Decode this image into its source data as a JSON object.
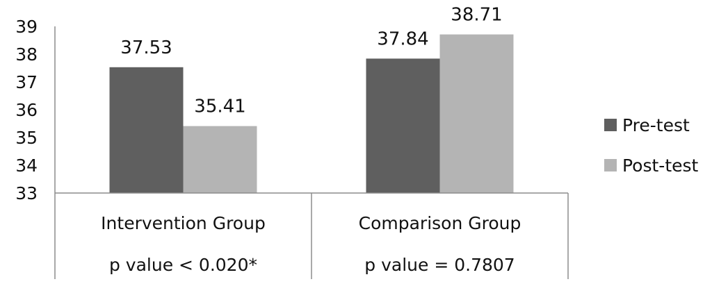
{
  "chart_data": {
    "type": "bar",
    "categories": [
      "Intervention Group",
      "Comparison Group"
    ],
    "category_notes": [
      "p value < 0.020*",
      "p value = 0.7807"
    ],
    "series": [
      {
        "name": "Pre-test",
        "values": [
          37.53,
          37.84
        ],
        "color": "#5f5f5f"
      },
      {
        "name": "Post-test",
        "values": [
          35.41,
          38.71
        ],
        "color": "#b4b4b4"
      }
    ],
    "data_labels": [
      [
        "37.53",
        "37.84"
      ],
      [
        "35.41",
        "38.71"
      ]
    ],
    "ylim": [
      33,
      39
    ],
    "yticks": [
      "33",
      "34",
      "35",
      "36",
      "37",
      "38",
      "39"
    ],
    "legend": "right",
    "grid": false
  }
}
